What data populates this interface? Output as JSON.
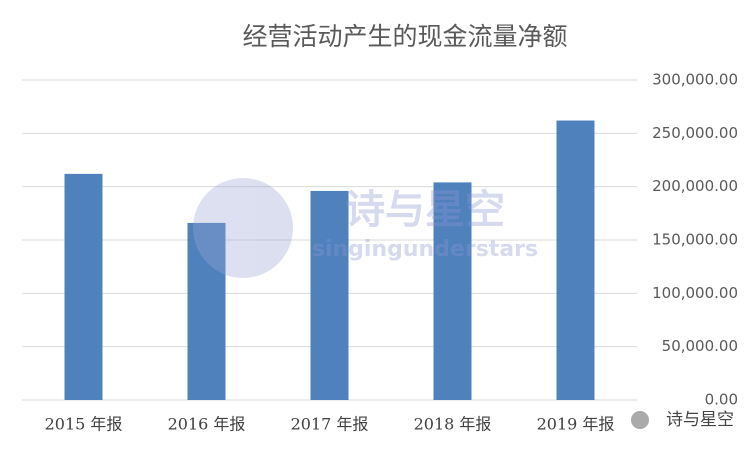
{
  "chart_data": {
    "type": "bar",
    "title": "经营活动产生的现金流量净额",
    "categories": [
      "2015 年报",
      "2016 年报",
      "2017 年报",
      "2018 年报",
      "2019 年报"
    ],
    "values": [
      212000,
      166000,
      196000,
      204000,
      262000
    ],
    "color": "#4f81bd",
    "ylim": [
      0,
      300000
    ],
    "yticks": [
      {
        "value": 0,
        "label": "0.00"
      },
      {
        "value": 50000,
        "label": "50,000.00"
      },
      {
        "value": 100000,
        "label": "100,000.00"
      },
      {
        "value": 150000,
        "label": "150,000.00"
      },
      {
        "value": 200000,
        "label": "200,000.00"
      },
      {
        "value": 250000,
        "label": "250,000.00"
      },
      {
        "value": 300000,
        "label": "300,000.00"
      }
    ],
    "grid": true
  },
  "watermark": {
    "title": "诗与星空",
    "subtitle": "singingunderstars",
    "corner": "诗与星空"
  }
}
